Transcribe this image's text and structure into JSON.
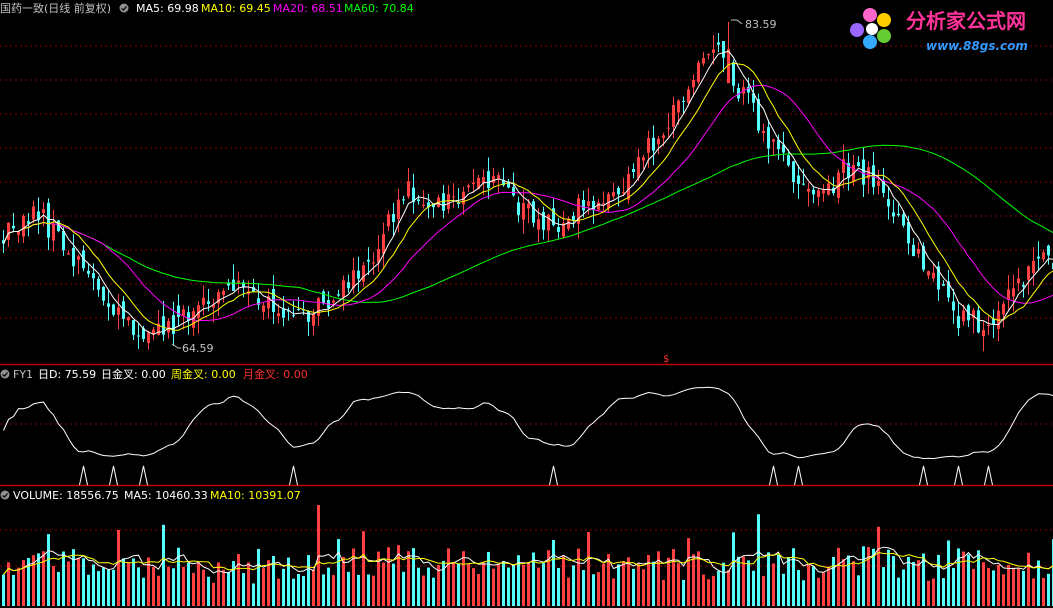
{
  "colors": {
    "background": "#000000",
    "up": "#ff4040",
    "down": "#54ffff",
    "grid": "#8b0000",
    "divider": "#c00000",
    "ma5": "#ffffff",
    "ma10": "#ffff00",
    "ma20": "#ff00ff",
    "ma60": "#00ff00",
    "title": "#c0c0c0",
    "fy1_line": "#ffffff",
    "month_cross": "#ff3030"
  },
  "header": {
    "icon": "circle-indicator-icon",
    "title": "国药一致(日线 前复权)",
    "ma5": "MA5: 69.98",
    "ma10": "MA10: 69.45",
    "ma20": "MA20: 68.51",
    "ma60": "MA60: 70.84"
  },
  "logo": {
    "name": "分析家公式网",
    "url": "www.88gs.com",
    "icon": "flower-logo-icon"
  },
  "price_panel": {
    "high_label": "83.59",
    "low_label": "64.59",
    "mid_marker": "$"
  },
  "fy1_panel": {
    "title": "FY1",
    "d_label": "日D: 75.59",
    "day_cross_label": "日金叉: 0.00",
    "week_cross_label": "周金叉: 0.00",
    "month_cross_label": "月金叉: 0.00"
  },
  "volume_panel": {
    "title": "VOLUME: 18556.75",
    "ma5": "MA5: 10460.33",
    "ma10": "MA10: 10391.07"
  },
  "chart_data": [
    {
      "type": "candlestick",
      "title": "国药一致(日线 前复权)",
      "ylim": [
        64.59,
        83.59
      ],
      "anchors": {
        "x": [
          0,
          7,
          16,
          25,
          30,
          33,
          45,
          50,
          58,
          73,
          80,
          87,
          98,
          101,
          108,
          115,
          122,
          133,
          142,
          154,
          163,
          168,
          174,
          191,
          197,
          206
        ],
        "close": [
          71.3,
          72.3,
          69.2,
          65.7,
          65.4,
          66.2,
          67.8,
          67.8,
          66.1,
          69.0,
          73.8,
          73.0,
          74.6,
          73.5,
          71.5,
          72.6,
          73.2,
          77.9,
          82.2,
          76.3,
          73.1,
          74.9,
          74.3,
          66.0,
          66.1,
          69.5
        ]
      },
      "high": 83.59,
      "low": 64.59,
      "ma_last": {
        "MA5": 69.98,
        "MA10": 69.45,
        "MA20": 68.51,
        "MA60": 70.84
      }
    },
    {
      "type": "line",
      "title": "FY1",
      "series": [
        {
          "name": "日D",
          "last": 75.59
        },
        {
          "name": "日金叉",
          "last": 0.0
        },
        {
          "name": "周金叉",
          "last": 0.0
        },
        {
          "name": "月金叉",
          "last": 0.0
        }
      ]
    },
    {
      "type": "bar",
      "title": "VOLUME",
      "last": 18556.75,
      "ma_last": {
        "MA5": 10460.33,
        "MA10": 10391.07
      }
    }
  ]
}
